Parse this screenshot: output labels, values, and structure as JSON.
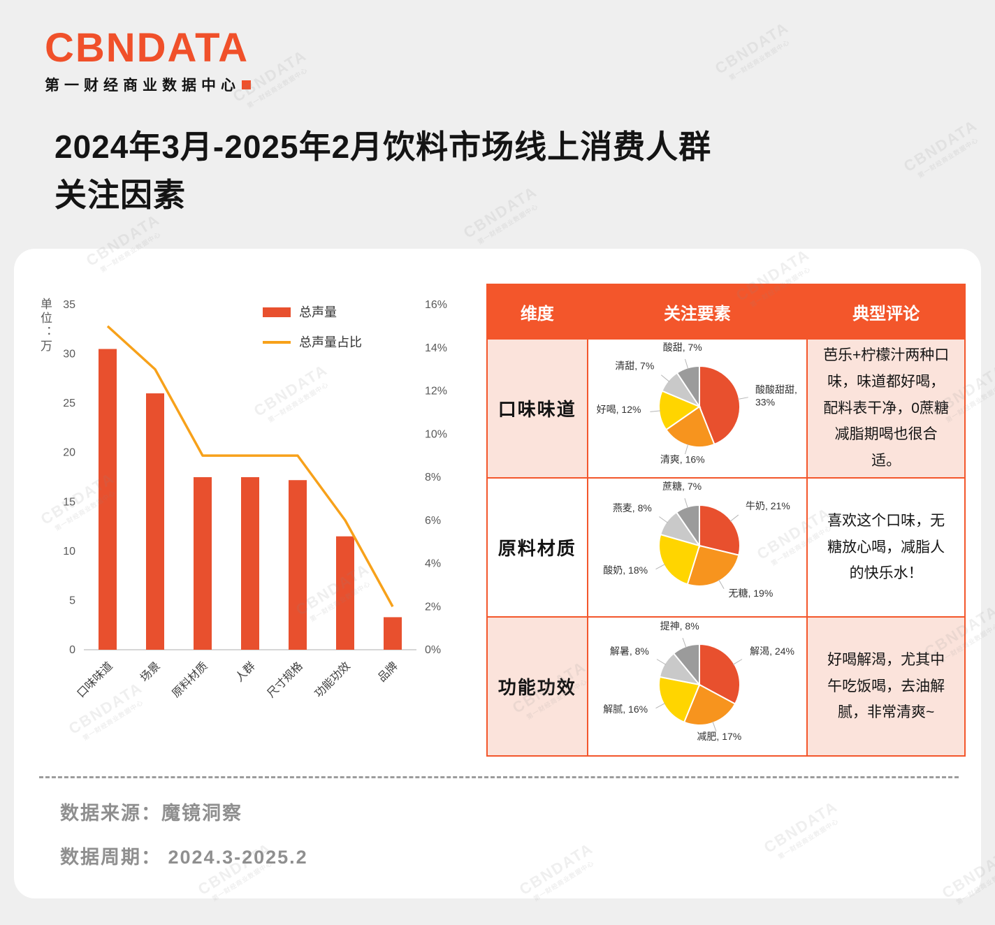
{
  "logo": {
    "brand": "CBNDATA",
    "subtitle": "第一财经商业数据中心"
  },
  "title": {
    "line1": "2024年3月-2025年2月饮料市场线上消费人群",
    "line2": "关注因素"
  },
  "colors": {
    "accent": "#F0502A",
    "bar": "#E8502E",
    "line": "#F7A11A",
    "table_header_bg": "#F3562B",
    "row_pink": "#FBE3DB",
    "axis_text": "#595959",
    "pie": [
      "#E8502E",
      "#F7941E",
      "#FFD500",
      "#C9C9C9",
      "#9B9B9B"
    ]
  },
  "chart_data": [
    {
      "type": "bar+line",
      "categories": [
        "口味味道",
        "场景",
        "原料材质",
        "人群",
        "尺寸规格",
        "功能功效",
        "品牌"
      ],
      "series": [
        {
          "name": "总声量",
          "type": "bar",
          "axis": "left",
          "values": [
            30.5,
            26,
            17.5,
            17.5,
            17.2,
            11.5,
            3.3
          ]
        },
        {
          "name": "总声量占比",
          "type": "line",
          "axis": "right",
          "values": [
            15,
            13,
            9,
            9,
            9,
            6,
            2
          ]
        }
      ],
      "left_axis": {
        "title": "单位：万",
        "min": 0,
        "max": 35,
        "step": 5
      },
      "right_axis": {
        "min": 0,
        "max": 16,
        "step": 2,
        "suffix": "%"
      },
      "grid": false,
      "legend_position": "top"
    },
    {
      "type": "pie",
      "title": "口味味道",
      "labels": [
        "酸酸甜甜",
        "清爽",
        "好喝",
        "清甜",
        "酸甜"
      ],
      "values": [
        33,
        16,
        12,
        7,
        7
      ]
    },
    {
      "type": "pie",
      "title": "原料材质",
      "labels": [
        "牛奶",
        "无糖",
        "酸奶",
        "燕麦",
        "蔗糖"
      ],
      "values": [
        21,
        19,
        18,
        8,
        7
      ]
    },
    {
      "type": "pie",
      "title": "功能功效",
      "labels": [
        "解渴",
        "减肥",
        "解腻",
        "解暑",
        "提神"
      ],
      "values": [
        24,
        17,
        16,
        8,
        8
      ]
    }
  ],
  "table": {
    "headers": [
      "维度",
      "关注要素",
      "典型评论"
    ],
    "rows": [
      {
        "dimension": "口味味道",
        "comment": "芭乐+柠檬汁两种口味，味道都好喝，配料表干净，0蔗糖减脂期喝也很合适。"
      },
      {
        "dimension": "原料材质",
        "comment": "喜欢这个口味，无糖放心喝，减脂人的快乐水！"
      },
      {
        "dimension": "功能功效",
        "comment": "好喝解渴，尤其中午吃饭喝，去油解腻，非常清爽~"
      }
    ]
  },
  "footer": {
    "source": "数据来源：魔镜洞察",
    "period": "数据周期： 2024.3-2025.2"
  }
}
